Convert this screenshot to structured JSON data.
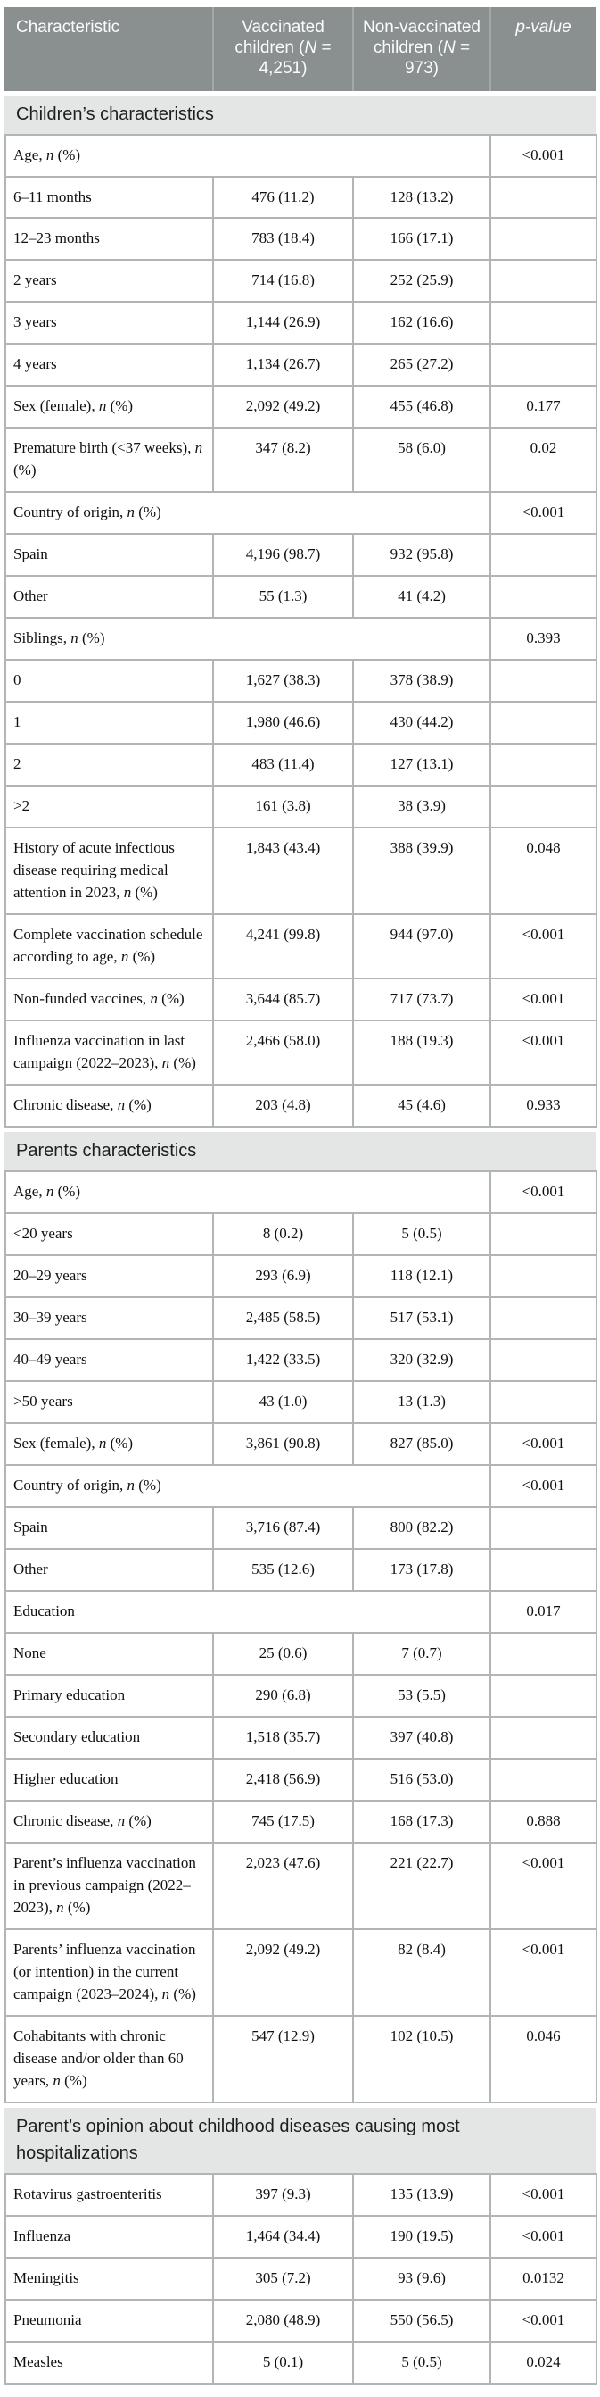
{
  "colors": {
    "header_bg": "#8a8f90",
    "header_text": "#fbfcfc",
    "section_bg": "#e4e5e5",
    "border_color": "#b2b5b6"
  },
  "table": {
    "columns": [
      {
        "label": "Characteristic"
      },
      {
        "label": "Vaccinated children (N = 4,251)"
      },
      {
        "label": "Non-vaccinated children (N = 973)"
      },
      {
        "label": "p-value"
      }
    ],
    "sections": [
      {
        "title": "Children’s characteristics",
        "rows": [
          {
            "type": "group",
            "label": "Age, n (%)",
            "vaccinated": "",
            "non_vaccinated": "",
            "p": "<0.001"
          },
          {
            "type": "sub",
            "label": "6–11 months",
            "vaccinated": "476 (11.2)",
            "non_vaccinated": "128 (13.2)",
            "p": ""
          },
          {
            "type": "sub",
            "label": "12–23 months",
            "vaccinated": "783 (18.4)",
            "non_vaccinated": "166 (17.1)",
            "p": ""
          },
          {
            "type": "sub",
            "label": "2 years",
            "vaccinated": "714 (16.8)",
            "non_vaccinated": "252 (25.9)",
            "p": ""
          },
          {
            "type": "sub",
            "label": "3 years",
            "vaccinated": "1,144 (26.9)",
            "non_vaccinated": "162 (16.6)",
            "p": ""
          },
          {
            "type": "sub",
            "label": "4 years",
            "vaccinated": "1,134 (26.7)",
            "non_vaccinated": "265 (27.2)",
            "p": ""
          },
          {
            "type": "data",
            "label": "Sex (female), n (%)",
            "vaccinated": "2,092 (49.2)",
            "non_vaccinated": "455 (46.8)",
            "p": "0.177"
          },
          {
            "type": "data",
            "label": "Premature birth (<37 weeks), n (%)",
            "vaccinated": "347 (8.2)",
            "non_vaccinated": "58 (6.0)",
            "p": "0.02"
          },
          {
            "type": "group",
            "label": "Country of origin, n (%)",
            "vaccinated": "",
            "non_vaccinated": "",
            "p": "<0.001"
          },
          {
            "type": "sub",
            "label": "Spain",
            "vaccinated": "4,196 (98.7)",
            "non_vaccinated": "932 (95.8)",
            "p": ""
          },
          {
            "type": "sub",
            "label": "Other",
            "vaccinated": "55 (1.3)",
            "non_vaccinated": "41 (4.2)",
            "p": ""
          },
          {
            "type": "group",
            "label": "Siblings, n (%)",
            "vaccinated": "",
            "non_vaccinated": "",
            "p": "0.393"
          },
          {
            "type": "sub",
            "label": "0",
            "vaccinated": "1,627 (38.3)",
            "non_vaccinated": "378 (38.9)",
            "p": ""
          },
          {
            "type": "sub",
            "label": "1",
            "vaccinated": "1,980 (46.6)",
            "non_vaccinated": "430 (44.2)",
            "p": ""
          },
          {
            "type": "sub",
            "label": "2",
            "vaccinated": "483 (11.4)",
            "non_vaccinated": "127 (13.1)",
            "p": ""
          },
          {
            "type": "sub",
            "label": ">2",
            "vaccinated": "161 (3.8)",
            "non_vaccinated": "38 (3.9)",
            "p": ""
          },
          {
            "type": "data",
            "label": "History of acute infectious disease requiring medical attention in 2023, n (%)",
            "vaccinated": "1,843 (43.4)",
            "non_vaccinated": "388 (39.9)",
            "p": "0.048"
          },
          {
            "type": "data",
            "label": "Complete vaccination schedule according to age, n (%)",
            "vaccinated": "4,241 (99.8)",
            "non_vaccinated": "944 (97.0)",
            "p": "<0.001"
          },
          {
            "type": "data",
            "label": "Non-funded vaccines, n (%)",
            "vaccinated": "3,644 (85.7)",
            "non_vaccinated": "717 (73.7)",
            "p": "<0.001"
          },
          {
            "type": "data",
            "label": "Influenza vaccination in last campaign (2022–2023), n (%)",
            "vaccinated": "2,466 (58.0)",
            "non_vaccinated": "188 (19.3)",
            "p": "<0.001"
          },
          {
            "type": "data",
            "label": "Chronic disease, n (%)",
            "vaccinated": "203 (4.8)",
            "non_vaccinated": "45 (4.6)",
            "p": "0.933"
          }
        ]
      },
      {
        "title": "Parents characteristics",
        "rows": [
          {
            "type": "group",
            "label": "Age, n (%)",
            "vaccinated": "",
            "non_vaccinated": "",
            "p": "<0.001"
          },
          {
            "type": "sub",
            "label": "<20 years",
            "vaccinated": "8 (0.2)",
            "non_vaccinated": "5 (0.5)",
            "p": ""
          },
          {
            "type": "sub",
            "label": "20–29 years",
            "vaccinated": "293 (6.9)",
            "non_vaccinated": "118 (12.1)",
            "p": ""
          },
          {
            "type": "sub",
            "label": "30–39 years",
            "vaccinated": "2,485 (58.5)",
            "non_vaccinated": "517 (53.1)",
            "p": ""
          },
          {
            "type": "sub",
            "label": "40–49 years",
            "vaccinated": "1,422 (33.5)",
            "non_vaccinated": "320 (32.9)",
            "p": ""
          },
          {
            "type": "sub",
            "label": ">50 years",
            "vaccinated": "43 (1.0)",
            "non_vaccinated": "13 (1.3)",
            "p": ""
          },
          {
            "type": "data",
            "label": "Sex (female), n (%)",
            "vaccinated": "3,861 (90.8)",
            "non_vaccinated": "827 (85.0)",
            "p": "<0.001"
          },
          {
            "type": "group",
            "label": "Country of origin, n (%)",
            "vaccinated": "",
            "non_vaccinated": "",
            "p": "<0.001"
          },
          {
            "type": "sub",
            "label": "Spain",
            "vaccinated": "3,716 (87.4)",
            "non_vaccinated": "800 (82.2)",
            "p": ""
          },
          {
            "type": "sub",
            "label": "Other",
            "vaccinated": "535 (12.6)",
            "non_vaccinated": "173 (17.8)",
            "p": ""
          },
          {
            "type": "group",
            "label": "Education",
            "vaccinated": "",
            "non_vaccinated": "",
            "p": "0.017"
          },
          {
            "type": "sub",
            "label": "None",
            "vaccinated": "25 (0.6)",
            "non_vaccinated": "7 (0.7)",
            "p": ""
          },
          {
            "type": "sub",
            "label": "Primary education",
            "vaccinated": "290 (6.8)",
            "non_vaccinated": "53 (5.5)",
            "p": ""
          },
          {
            "type": "sub",
            "label": "Secondary education",
            "vaccinated": "1,518 (35.7)",
            "non_vaccinated": "397 (40.8)",
            "p": ""
          },
          {
            "type": "sub",
            "label": "Higher education",
            "vaccinated": "2,418 (56.9)",
            "non_vaccinated": "516 (53.0)",
            "p": ""
          },
          {
            "type": "data",
            "label": "Chronic disease, n (%)",
            "vaccinated": "745 (17.5)",
            "non_vaccinated": "168 (17.3)",
            "p": "0.888"
          },
          {
            "type": "data",
            "label": "Parent’s influenza vaccination in previous campaign (2022–2023), n (%)",
            "vaccinated": "2,023 (47.6)",
            "non_vaccinated": "221 (22.7)",
            "p": "<0.001"
          },
          {
            "type": "data",
            "label": "Parents’ influenza vaccination (or intention) in the current campaign (2023–2024), n (%)",
            "vaccinated": "2,092 (49.2)",
            "non_vaccinated": "82 (8.4)",
            "p": "<0.001"
          },
          {
            "type": "data",
            "label": "Cohabitants with chronic disease and/or older than 60 years, n (%)",
            "vaccinated": "547 (12.9)",
            "non_vaccinated": "102 (10.5)",
            "p": "0.046"
          }
        ]
      },
      {
        "title": "Parent’s opinion about childhood diseases causing most hospitalizations",
        "rows": [
          {
            "type": "data",
            "label": "Rotavirus gastroenteritis",
            "vaccinated": "397 (9.3)",
            "non_vaccinated": "135 (13.9)",
            "p": "<0.001"
          },
          {
            "type": "data",
            "label": "Influenza",
            "vaccinated": "1,464 (34.4)",
            "non_vaccinated": "190 (19.5)",
            "p": "<0.001"
          },
          {
            "type": "data",
            "label": "Meningitis",
            "vaccinated": "305 (7.2)",
            "non_vaccinated": "93 (9.6)",
            "p": "0.0132"
          },
          {
            "type": "data",
            "label": "Pneumonia",
            "vaccinated": "2,080 (48.9)",
            "non_vaccinated": "550 (56.5)",
            "p": "<0.001"
          },
          {
            "type": "data",
            "label": "Measles",
            "vaccinated": "5 (0.1)",
            "non_vaccinated": "5 (0.5)",
            "p": "0.024"
          }
        ]
      }
    ]
  }
}
